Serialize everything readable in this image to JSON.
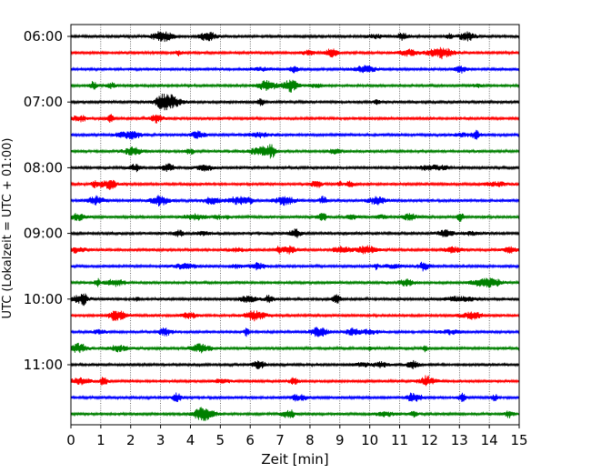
{
  "chart_data": {
    "type": "line",
    "xlabel": "Zeit  [min]",
    "ylabel": "UTC (Lokalzeit = UTC + 01:00)",
    "xlim": [
      0,
      15
    ],
    "x_ticks": [
      "0",
      "1",
      "2",
      "3",
      "4",
      "5",
      "6",
      "7",
      "8",
      "9",
      "10",
      "11",
      "12",
      "13",
      "14",
      "15"
    ],
    "y_ticks": [
      "06:00",
      "07:00",
      "08:00",
      "09:00",
      "10:00",
      "11:00"
    ],
    "grid": "vertical dotted",
    "trace_interval_minutes": 15,
    "trace_start": "06:00",
    "trace_count": 24,
    "trace_colors": [
      "#000000",
      "#ff0000",
      "#0000ff",
      "#008000"
    ]
  }
}
